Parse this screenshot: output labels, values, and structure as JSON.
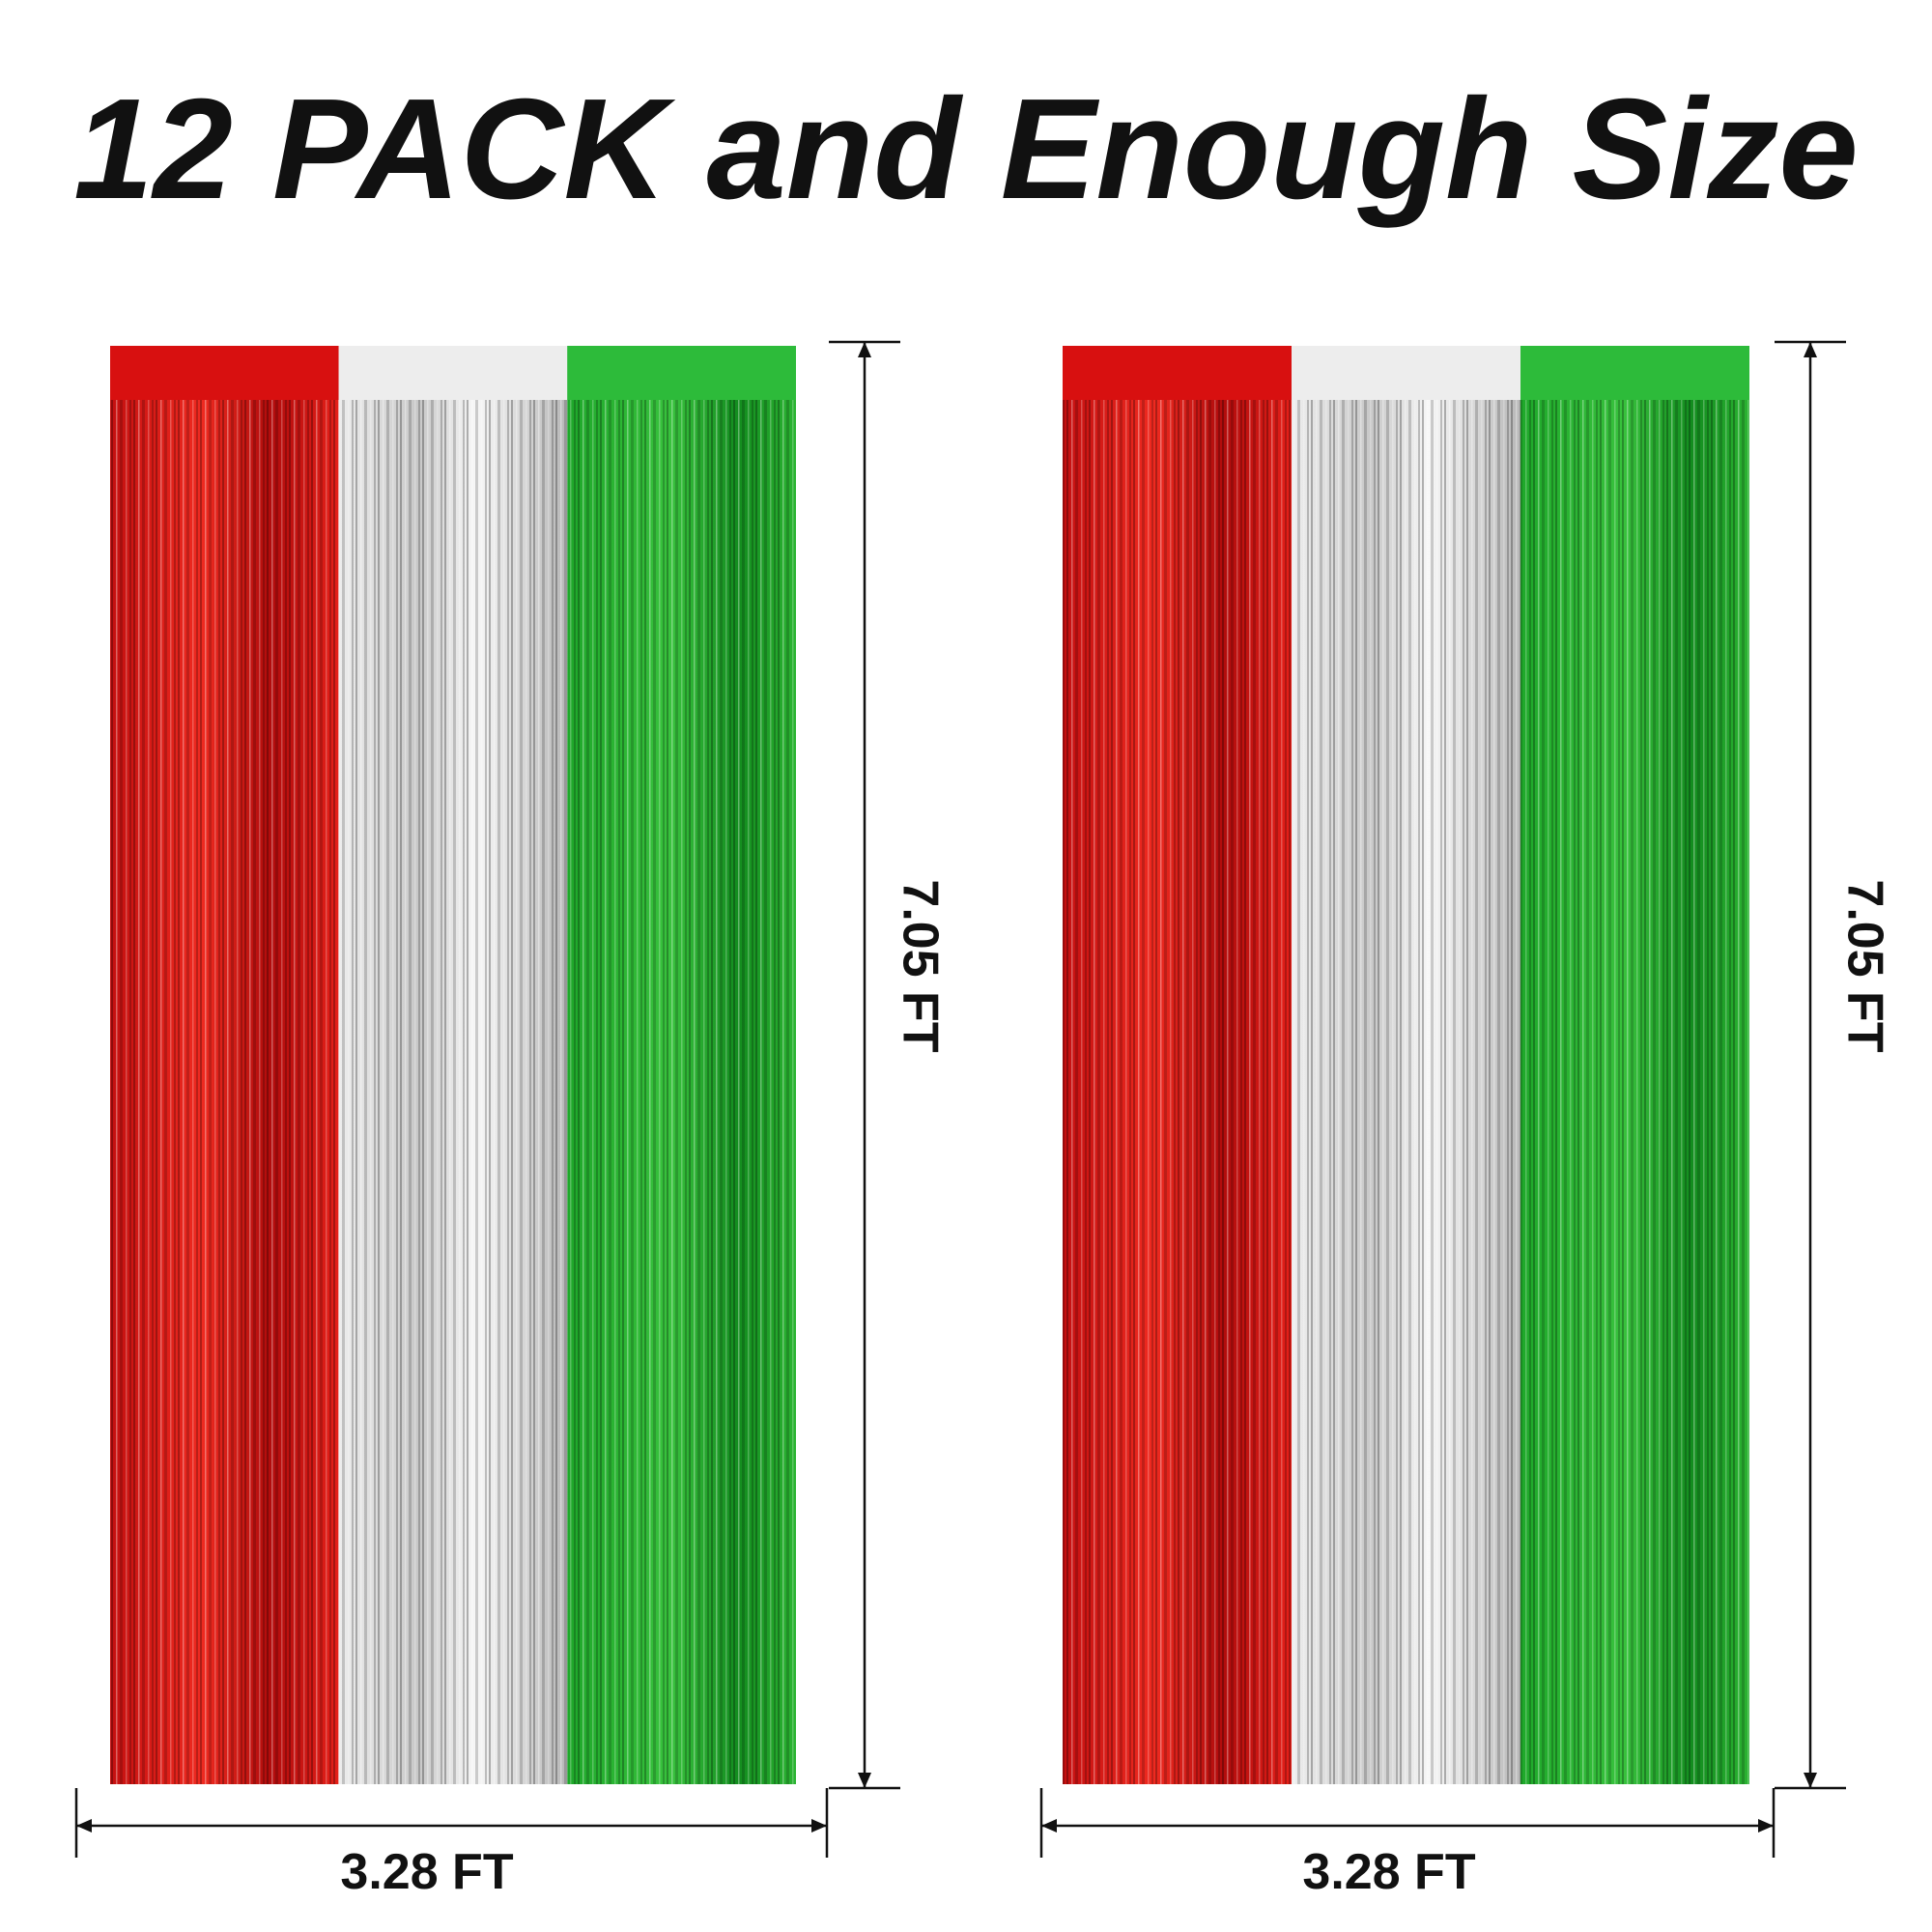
{
  "title": "12 PACK and Enough Size",
  "curtains": [
    {
      "height_label": "7.05 FT",
      "width_label": "3.28 FT"
    },
    {
      "height_label": "7.05 FT",
      "width_label": "3.28 FT"
    }
  ]
}
